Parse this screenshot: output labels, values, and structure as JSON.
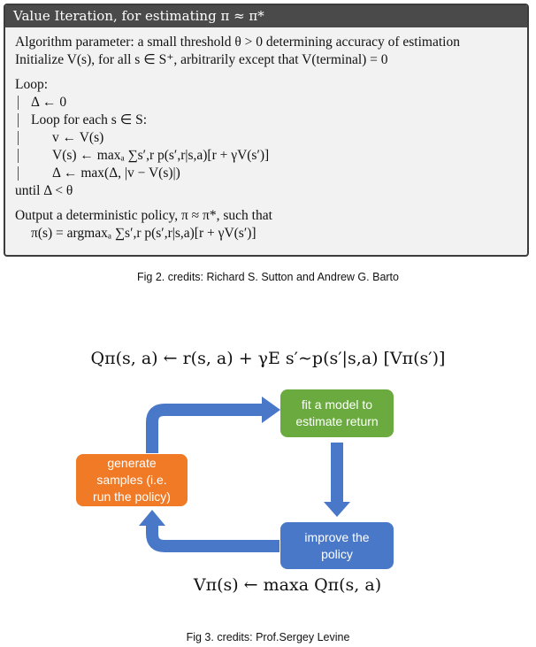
{
  "figure2": {
    "title": "Value Iteration, for estimating π ≈ π*",
    "lines": [
      "Algorithm parameter: a small threshold θ > 0 determining accuracy of estimation",
      "Initialize V(s), for all s ∈ S⁺, arbitrarily except that V(terminal) = 0",
      "Loop:",
      "Δ ← 0",
      "Loop for each s ∈ S:",
      "v ← V(s)",
      "V(s) ← maxₐ ∑s′,r p(s′,r|s,a)[r + γV(s′)]",
      "Δ ← max(Δ, |v − V(s)|)",
      "until Δ < θ",
      "Output a deterministic policy, π ≈ π*, such that",
      "π(s) = argmaxₐ ∑s′,r p(s′,r|s,a)[r + γV(s′)]"
    ],
    "caption": "Fig 2. credits: Richard S. Sutton and Andrew G. Barto"
  },
  "figure3": {
    "equation_top": "Qπ(s, a) ← r(s, a) + γE s′∼p(s′|s,a) [Vπ(s′)]",
    "equation_bottom": "Vπ(s) ← maxa Qπ(s, a)",
    "nodes": {
      "fit": "fit a model to\nestimate return",
      "generate": "generate\nsamples (i.e.\nrun the policy)",
      "improve": "improve the\npolicy"
    },
    "colors": {
      "fit": "#6aaa3e",
      "generate": "#f07a25",
      "improve": "#4a78c8",
      "arrow": "#4a78c8"
    },
    "caption": "Fig 3. credits: Prof.Sergey Levine"
  }
}
